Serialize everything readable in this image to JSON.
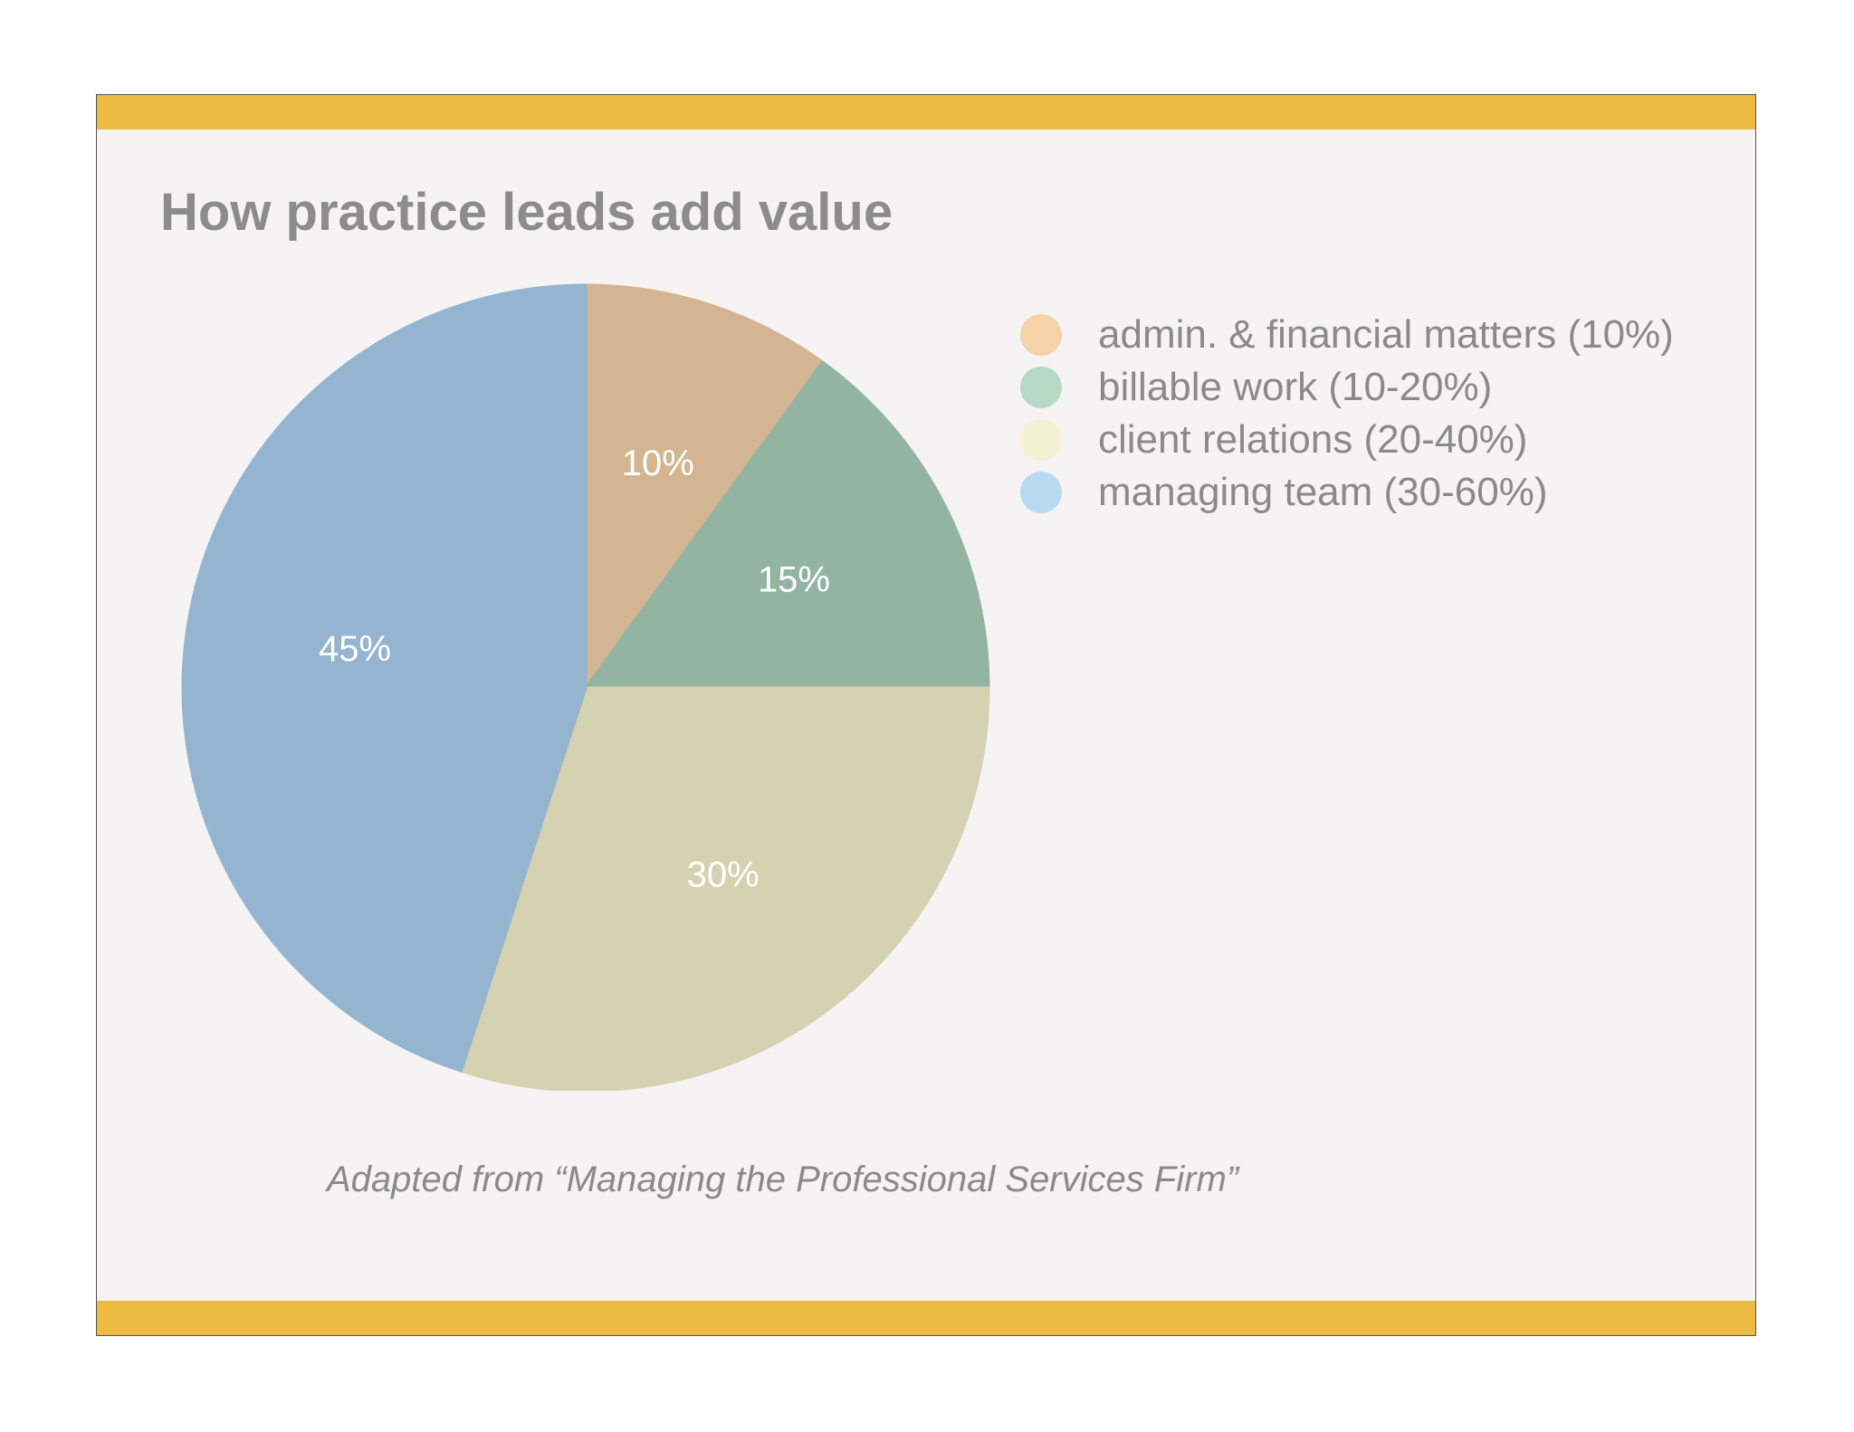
{
  "title": "How practice leads add value",
  "source": "Adapted from “Managing the Professional Services Firm”",
  "colors": {
    "accent_bar": "#eebb42",
    "background": "#f5f3f3"
  },
  "chart_data": {
    "type": "pie",
    "title": "How practice leads add value",
    "categories": [
      "admin. & financial matters (10%)",
      "billable work (10-20%)",
      "client relations (20-40%)",
      "managing team (30-60%)"
    ],
    "values": [
      10,
      15,
      30,
      45
    ],
    "labels": [
      "10%",
      "15%",
      "30%",
      "45%"
    ],
    "colors": [
      "#d4b591",
      "#93b4a2",
      "#d4d2b0",
      "#95b4d0"
    ],
    "legend_colors": [
      "#f5d2a8",
      "#b6d9c6",
      "#f3f2d2",
      "#b8d9f0"
    ],
    "legend_position": "right"
  }
}
